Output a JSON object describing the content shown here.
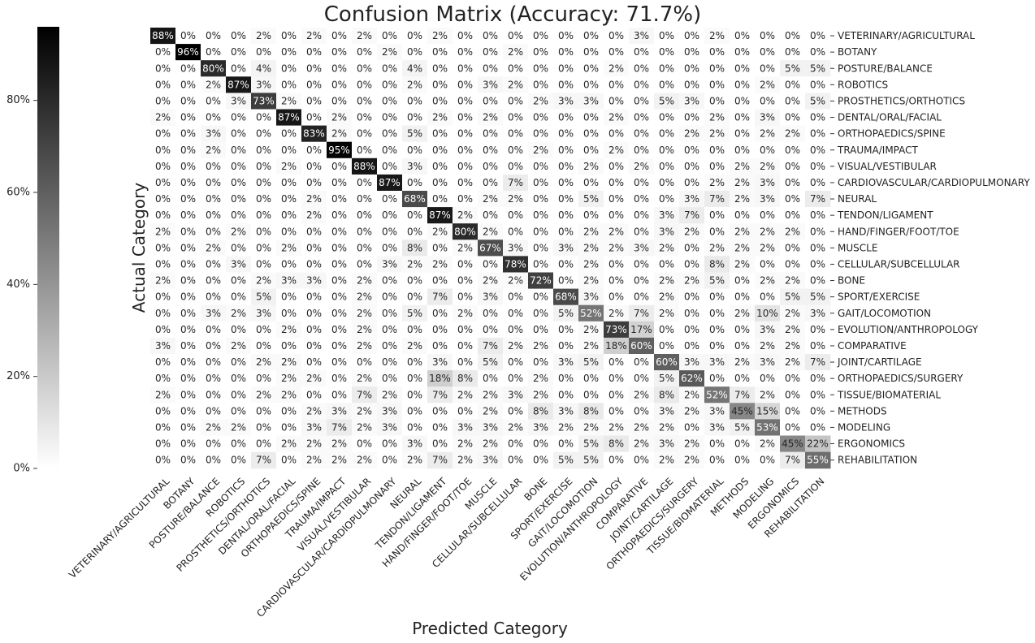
{
  "chart_data": {
    "type": "heatmap",
    "title": "Confusion Matrix (Accuracy: 71.7%)",
    "xlabel": "Predicted Category",
    "ylabel": "Actual Category",
    "labels": [
      "VETERINARY/AGRICULTURAL",
      "BOTANY",
      "POSTURE/BALANCE",
      "ROBOTICS",
      "PROSTHETICS/ORTHOTICS",
      "DENTAL/ORAL/FACIAL",
      "ORTHOPAEDICS/SPINE",
      "TRAUMA/IMPACT",
      "VISUAL/VESTIBULAR",
      "CARDIOVASCULAR/CARDIOPULMONARY",
      "NEURAL",
      "TENDON/LIGAMENT",
      "HAND/FINGER/FOOT/TOE",
      "MUSCLE",
      "CELLULAR/SUBCELLULAR",
      "BONE",
      "SPORT/EXERCISE",
      "GAIT/LOCOMOTION",
      "EVOLUTION/ANTHROPOLOGY",
      "COMPARATIVE",
      "JOINT/CARTILAGE",
      "ORTHOPAEDICS/SURGERY",
      "TISSUE/BIOMATERIAL",
      "METHODS",
      "MODELING",
      "ERGONOMICS",
      "REHABILITATION"
    ],
    "values": [
      [
        88,
        0,
        0,
        0,
        2,
        0,
        2,
        0,
        2,
        0,
        0,
        2,
        0,
        0,
        0,
        0,
        0,
        0,
        0,
        3,
        0,
        0,
        2,
        0,
        0,
        0,
        0
      ],
      [
        0,
        96,
        0,
        0,
        0,
        0,
        0,
        0,
        0,
        2,
        0,
        0,
        0,
        0,
        2,
        0,
        0,
        0,
        0,
        0,
        0,
        0,
        0,
        0,
        0,
        0,
        0
      ],
      [
        0,
        0,
        80,
        0,
        4,
        0,
        0,
        0,
        0,
        0,
        4,
        0,
        0,
        0,
        0,
        0,
        0,
        0,
        2,
        0,
        0,
        0,
        0,
        0,
        0,
        5,
        5
      ],
      [
        0,
        0,
        2,
        87,
        3,
        0,
        0,
        0,
        0,
        0,
        2,
        0,
        0,
        3,
        2,
        0,
        0,
        0,
        0,
        0,
        0,
        0,
        0,
        0,
        2,
        0,
        0
      ],
      [
        0,
        0,
        0,
        3,
        73,
        2,
        0,
        0,
        0,
        0,
        0,
        0,
        0,
        0,
        0,
        2,
        3,
        3,
        0,
        0,
        5,
        3,
        0,
        0,
        0,
        0,
        5
      ],
      [
        2,
        0,
        0,
        0,
        0,
        87,
        0,
        2,
        0,
        0,
        0,
        2,
        0,
        2,
        0,
        0,
        0,
        0,
        2,
        0,
        0,
        0,
        2,
        0,
        3,
        0,
        0
      ],
      [
        0,
        0,
        3,
        0,
        0,
        0,
        83,
        2,
        0,
        0,
        5,
        0,
        0,
        0,
        0,
        0,
        0,
        0,
        0,
        0,
        0,
        2,
        2,
        0,
        2,
        2,
        0
      ],
      [
        0,
        0,
        2,
        0,
        0,
        0,
        0,
        95,
        0,
        0,
        0,
        0,
        0,
        0,
        0,
        2,
        0,
        0,
        2,
        0,
        0,
        0,
        0,
        0,
        0,
        0,
        0
      ],
      [
        0,
        0,
        0,
        0,
        0,
        2,
        0,
        0,
        88,
        0,
        3,
        0,
        0,
        0,
        0,
        0,
        0,
        2,
        0,
        2,
        0,
        0,
        0,
        2,
        2,
        0,
        0
      ],
      [
        0,
        0,
        0,
        0,
        0,
        0,
        0,
        0,
        0,
        87,
        0,
        0,
        0,
        0,
        7,
        0,
        0,
        0,
        0,
        0,
        0,
        0,
        2,
        2,
        3,
        0,
        0
      ],
      [
        0,
        0,
        0,
        0,
        0,
        0,
        2,
        0,
        0,
        0,
        68,
        0,
        0,
        2,
        2,
        0,
        0,
        5,
        0,
        0,
        0,
        3,
        7,
        2,
        3,
        0,
        7
      ],
      [
        0,
        0,
        0,
        0,
        0,
        0,
        2,
        0,
        0,
        0,
        0,
        87,
        2,
        0,
        0,
        0,
        0,
        0,
        0,
        0,
        3,
        7,
        0,
        0,
        0,
        0,
        0
      ],
      [
        2,
        0,
        0,
        2,
        0,
        0,
        0,
        0,
        0,
        0,
        0,
        2,
        80,
        2,
        0,
        0,
        0,
        2,
        2,
        0,
        3,
        2,
        0,
        2,
        2,
        2,
        0
      ],
      [
        0,
        0,
        2,
        0,
        0,
        2,
        0,
        0,
        0,
        0,
        8,
        0,
        2,
        67,
        3,
        0,
        3,
        2,
        2,
        3,
        2,
        0,
        2,
        2,
        2,
        0,
        0
      ],
      [
        0,
        0,
        0,
        3,
        0,
        0,
        0,
        0,
        0,
        3,
        2,
        2,
        0,
        0,
        78,
        0,
        0,
        2,
        0,
        0,
        0,
        0,
        8,
        2,
        0,
        0,
        0
      ],
      [
        2,
        0,
        0,
        0,
        2,
        3,
        3,
        0,
        2,
        0,
        0,
        0,
        0,
        2,
        2,
        72,
        0,
        2,
        0,
        0,
        2,
        2,
        5,
        0,
        2,
        2,
        0
      ],
      [
        0,
        0,
        0,
        0,
        5,
        0,
        0,
        0,
        2,
        0,
        0,
        7,
        0,
        3,
        0,
        0,
        68,
        3,
        0,
        0,
        2,
        0,
        0,
        0,
        0,
        5,
        5
      ],
      [
        0,
        0,
        3,
        2,
        3,
        0,
        0,
        0,
        2,
        0,
        5,
        0,
        2,
        0,
        0,
        0,
        5,
        52,
        2,
        7,
        2,
        0,
        0,
        2,
        10,
        2,
        3
      ],
      [
        0,
        0,
        0,
        0,
        0,
        2,
        0,
        0,
        2,
        0,
        0,
        0,
        0,
        0,
        0,
        0,
        0,
        2,
        73,
        17,
        0,
        0,
        0,
        0,
        3,
        2,
        0
      ],
      [
        3,
        0,
        0,
        2,
        0,
        0,
        0,
        0,
        2,
        0,
        2,
        0,
        0,
        7,
        2,
        2,
        0,
        2,
        18,
        60,
        0,
        0,
        0,
        0,
        2,
        2,
        0
      ],
      [
        0,
        0,
        0,
        0,
        2,
        2,
        0,
        0,
        0,
        0,
        0,
        3,
        0,
        5,
        0,
        0,
        3,
        5,
        0,
        0,
        60,
        3,
        3,
        2,
        3,
        2,
        7
      ],
      [
        0,
        0,
        0,
        0,
        0,
        2,
        2,
        0,
        2,
        0,
        0,
        18,
        8,
        0,
        0,
        2,
        0,
        0,
        0,
        0,
        5,
        62,
        0,
        0,
        0,
        0,
        0
      ],
      [
        2,
        0,
        0,
        0,
        2,
        2,
        0,
        0,
        7,
        2,
        0,
        7,
        2,
        2,
        3,
        2,
        0,
        0,
        0,
        2,
        8,
        2,
        52,
        7,
        2,
        0,
        0
      ],
      [
        0,
        0,
        0,
        0,
        0,
        0,
        2,
        3,
        2,
        3,
        0,
        0,
        0,
        2,
        0,
        8,
        3,
        8,
        0,
        0,
        3,
        2,
        3,
        45,
        15,
        0,
        0
      ],
      [
        0,
        0,
        2,
        2,
        0,
        0,
        3,
        7,
        2,
        3,
        0,
        0,
        3,
        3,
        2,
        3,
        2,
        2,
        2,
        2,
        2,
        0,
        3,
        5,
        53,
        0,
        0
      ],
      [
        0,
        0,
        0,
        0,
        0,
        2,
        2,
        2,
        0,
        0,
        3,
        0,
        2,
        2,
        0,
        0,
        0,
        5,
        8,
        2,
        3,
        2,
        0,
        0,
        2,
        45,
        22
      ],
      [
        0,
        0,
        0,
        0,
        7,
        0,
        2,
        2,
        2,
        0,
        2,
        7,
        2,
        3,
        0,
        0,
        5,
        5,
        0,
        0,
        2,
        2,
        0,
        0,
        0,
        7,
        55
      ]
    ],
    "colorbar": {
      "ticks": [
        "0%",
        "20%",
        "40%",
        "60%",
        "80%"
      ],
      "tick_values": [
        0,
        20,
        40,
        60,
        80
      ],
      "range": [
        0,
        96
      ]
    },
    "colors": {
      "low": "#ffffff",
      "high": "#000000"
    }
  }
}
